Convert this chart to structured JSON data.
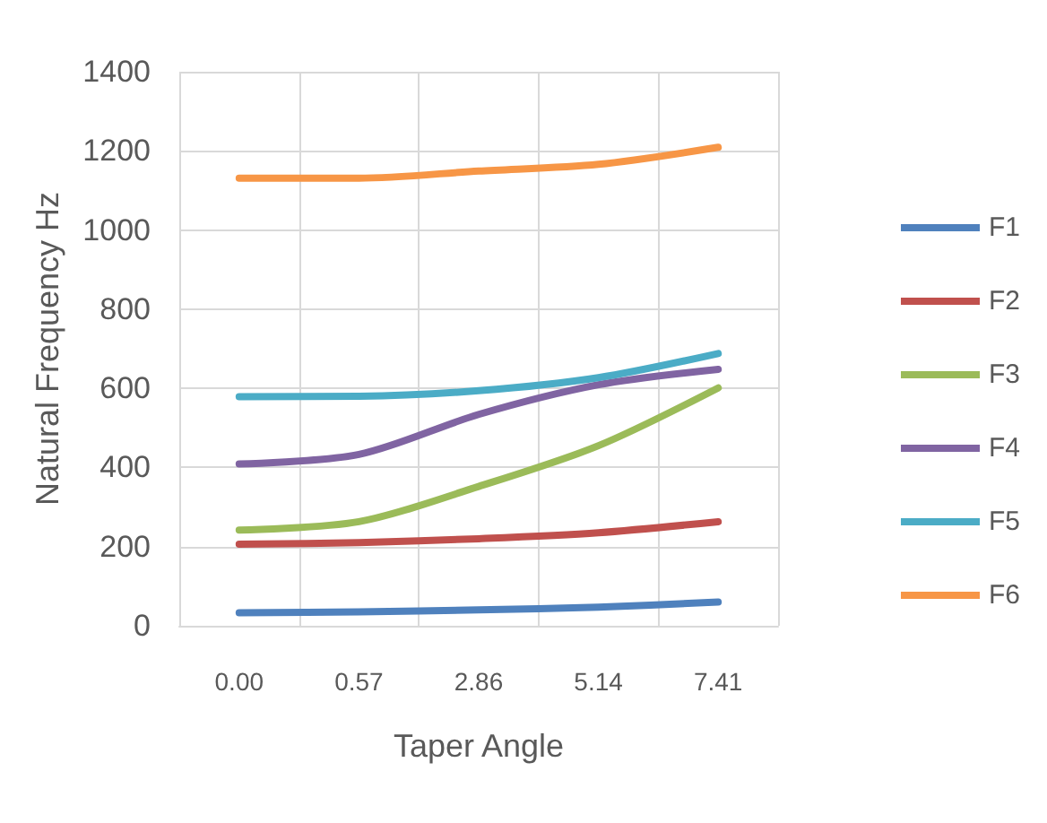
{
  "chart_data": {
    "type": "line",
    "xlabel": "Taper Angle",
    "ylabel": "Natural Frequency Hz",
    "categories": [
      "0.00",
      "0.57",
      "2.86",
      "5.14",
      "7.41"
    ],
    "series": [
      {
        "name": "F1",
        "color": "#4f81bd",
        "values": [
          33,
          35,
          40,
          47,
          60
        ]
      },
      {
        "name": "F2",
        "color": "#c0504d",
        "values": [
          206,
          210,
          220,
          235,
          263
        ]
      },
      {
        "name": "F3",
        "color": "#9bbb59",
        "values": [
          242,
          263,
          352,
          455,
          601
        ]
      },
      {
        "name": "F4",
        "color": "#8064a2",
        "values": [
          409,
          433,
          534,
          609,
          648
        ]
      },
      {
        "name": "F5",
        "color": "#4bacc6",
        "values": [
          579,
          580,
          594,
          627,
          688
        ]
      },
      {
        "name": "F6",
        "color": "#f79646",
        "values": [
          1131,
          1131,
          1149,
          1166,
          1209
        ]
      }
    ],
    "ylim": [
      0,
      1400
    ],
    "yticks": [
      0,
      200,
      400,
      600,
      800,
      1000,
      1200,
      1400
    ],
    "grid": true,
    "legend": "right",
    "marker": "none",
    "line_style": "solid"
  }
}
